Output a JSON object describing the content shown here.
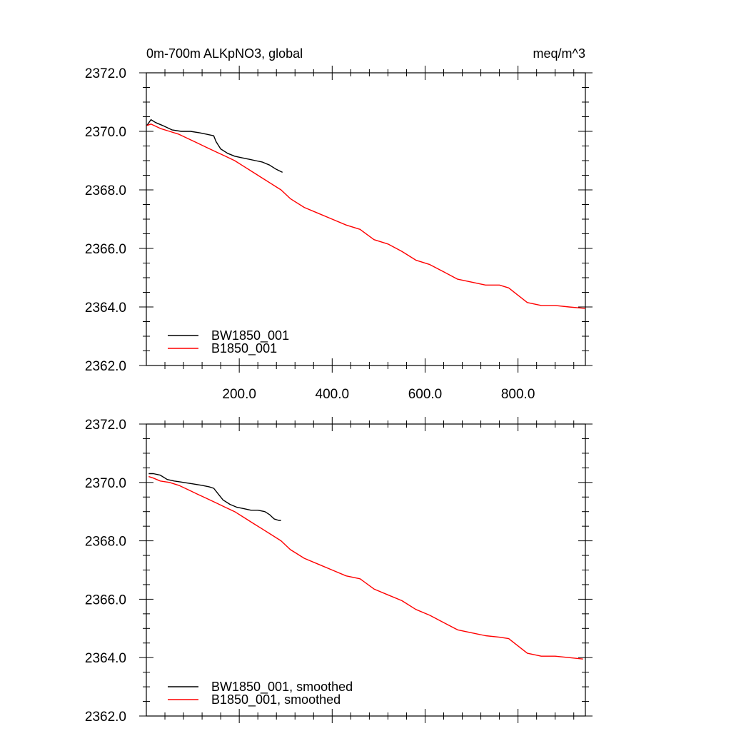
{
  "chart_data": [
    {
      "type": "line",
      "title": "0m-700m ALKpNO3, global",
      "subtitle_right": "meq/m^3",
      "xlim": [
        0,
        945
      ],
      "ylim": [
        2362,
        2372
      ],
      "x_ticks": [
        200,
        400,
        600,
        800
      ],
      "x_tick_labels": [
        "200.0",
        "400.0",
        "600.0",
        "800.0"
      ],
      "y_ticks": [
        2362,
        2364,
        2366,
        2368,
        2370,
        2372
      ],
      "y_tick_labels": [
        "2362.0",
        "2364.0",
        "2366.0",
        "2368.0",
        "2370.0",
        "2372.0"
      ],
      "legend_position": "bottom-left",
      "series": [
        {
          "name": "BW1850_001",
          "color": "#000000",
          "x": [
            1,
            10,
            20,
            35,
            55,
            75,
            95,
            115,
            130,
            145,
            150,
            160,
            175,
            190,
            205,
            220,
            235,
            250,
            265,
            280,
            293
          ],
          "y": [
            2370.2,
            2370.4,
            2370.3,
            2370.2,
            2370.05,
            2370.0,
            2370.0,
            2369.95,
            2369.9,
            2369.85,
            2369.65,
            2369.4,
            2369.25,
            2369.15,
            2369.1,
            2369.05,
            2369.0,
            2368.95,
            2368.85,
            2368.7,
            2368.6
          ]
        },
        {
          "name": "B1850_001",
          "color": "#ff0000",
          "x": [
            1,
            10,
            30,
            50,
            70,
            90,
            110,
            130,
            150,
            170,
            190,
            210,
            230,
            250,
            270,
            290,
            310,
            340,
            370,
            400,
            430,
            460,
            490,
            520,
            550,
            580,
            610,
            640,
            670,
            700,
            730,
            760,
            780,
            800,
            820,
            850,
            880,
            910,
            945
          ],
          "y": [
            2370.2,
            2370.25,
            2370.1,
            2370.0,
            2369.9,
            2369.75,
            2369.6,
            2369.45,
            2369.3,
            2369.15,
            2369.0,
            2368.8,
            2368.6,
            2368.4,
            2368.2,
            2368.0,
            2367.7,
            2367.4,
            2367.2,
            2367.0,
            2366.8,
            2366.65,
            2366.3,
            2366.15,
            2365.9,
            2365.6,
            2365.45,
            2365.2,
            2364.95,
            2364.85,
            2364.75,
            2364.75,
            2364.65,
            2364.4,
            2364.15,
            2364.05,
            2364.05,
            2364.0,
            2363.95
          ]
        }
      ]
    },
    {
      "type": "line",
      "title": "",
      "xlim": [
        0,
        945
      ],
      "ylim": [
        2362,
        2372
      ],
      "x_ticks": [
        200,
        400,
        600,
        800
      ],
      "x_tick_labels": [],
      "y_ticks": [
        2362,
        2364,
        2366,
        2368,
        2370,
        2372
      ],
      "y_tick_labels": [
        "2362.0",
        "2364.0",
        "2366.0",
        "2368.0",
        "2370.0",
        "2372.0"
      ],
      "legend_position": "bottom-left",
      "series": [
        {
          "name": "BW1850_001, smoothed",
          "color": "#000000",
          "x": [
            5,
            15,
            30,
            45,
            60,
            80,
            100,
            120,
            135,
            145,
            155,
            165,
            180,
            195,
            210,
            225,
            240,
            255,
            265,
            275,
            285,
            290
          ],
          "y": [
            2370.3,
            2370.3,
            2370.25,
            2370.1,
            2370.05,
            2370.0,
            2369.95,
            2369.9,
            2369.85,
            2369.8,
            2369.6,
            2369.4,
            2369.25,
            2369.15,
            2369.1,
            2369.05,
            2369.05,
            2369.0,
            2368.9,
            2368.75,
            2368.7,
            2368.7
          ]
        },
        {
          "name": "B1850_001, smoothed",
          "color": "#ff0000",
          "x": [
            5,
            15,
            30,
            50,
            70,
            90,
            110,
            130,
            150,
            170,
            190,
            210,
            230,
            250,
            270,
            290,
            310,
            340,
            370,
            400,
            430,
            460,
            490,
            520,
            550,
            580,
            610,
            640,
            670,
            700,
            730,
            760,
            780,
            800,
            820,
            850,
            880,
            910,
            940
          ],
          "y": [
            2370.2,
            2370.15,
            2370.05,
            2370.0,
            2369.9,
            2369.75,
            2369.6,
            2369.45,
            2369.3,
            2369.15,
            2369.0,
            2368.8,
            2368.6,
            2368.4,
            2368.2,
            2368.0,
            2367.7,
            2367.4,
            2367.2,
            2367.0,
            2366.8,
            2366.7,
            2366.35,
            2366.15,
            2365.95,
            2365.65,
            2365.45,
            2365.2,
            2364.95,
            2364.85,
            2364.75,
            2364.7,
            2364.65,
            2364.4,
            2364.15,
            2364.05,
            2364.05,
            2364.0,
            2363.95
          ]
        }
      ]
    }
  ]
}
